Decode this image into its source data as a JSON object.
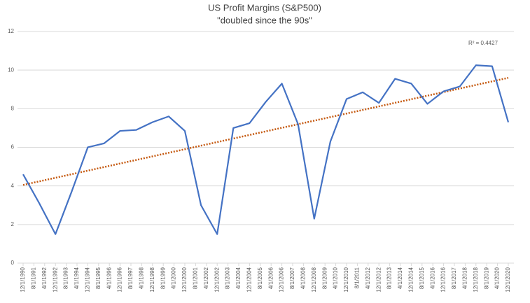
{
  "chart_data": {
    "type": "line",
    "title": "US Profit Margins (S&P500)",
    "subtitle": "\"doubled since the 90s\"",
    "annotation": "R² = 0.4427",
    "x": [
      1990,
      1991,
      1992,
      1993,
      1994,
      1995,
      1996,
      1997,
      1998,
      1999,
      2000,
      2001,
      2002,
      2003,
      2004,
      2005,
      2006,
      2007,
      2008,
      2009,
      2010,
      2011,
      2012,
      2013,
      2014,
      2015,
      2016,
      2017,
      2018,
      2019,
      2020
    ],
    "series": [
      {
        "color": "#4472c4",
        "values": [
          4.6,
          3.1,
          1.5,
          3.7,
          6.0,
          6.2,
          6.85,
          6.9,
          7.3,
          7.6,
          6.85,
          3.0,
          1.5,
          7.0,
          7.25,
          8.35,
          9.3,
          7.2,
          2.3,
          6.3,
          8.5,
          8.85,
          8.3,
          9.55,
          9.3,
          8.25,
          8.9,
          9.15,
          10.25,
          10.2,
          7.3
        ]
      }
    ],
    "trendline": {
      "color": "#c55a11",
      "x": [
        1990,
        2020
      ],
      "values": [
        4.05,
        9.6
      ]
    },
    "xlim": [
      1990,
      2020
    ],
    "xticks": [
      {
        "value": 1990,
        "label": "12/1/1990"
      },
      {
        "value": 1990.667,
        "label": "8/1/1991"
      },
      {
        "value": 1991.333,
        "label": "4/1/1992"
      },
      {
        "value": 1992,
        "label": "12/1/1992"
      },
      {
        "value": 1992.667,
        "label": "8/1/1993"
      },
      {
        "value": 1993.333,
        "label": "4/1/1994"
      },
      {
        "value": 1994,
        "label": "12/1/1994"
      },
      {
        "value": 1994.667,
        "label": "8/1/1995"
      },
      {
        "value": 1995.333,
        "label": "4/1/1996"
      },
      {
        "value": 1996,
        "label": "12/1/1996"
      },
      {
        "value": 1996.667,
        "label": "8/1/1997"
      },
      {
        "value": 1997.333,
        "label": "4/1/1998"
      },
      {
        "value": 1998,
        "label": "12/1/1998"
      },
      {
        "value": 1998.667,
        "label": "8/1/1999"
      },
      {
        "value": 1999.333,
        "label": "4/1/2000"
      },
      {
        "value": 2000,
        "label": "12/1/2000"
      },
      {
        "value": 2000.667,
        "label": "8/1/2001"
      },
      {
        "value": 2001.333,
        "label": "4/1/2002"
      },
      {
        "value": 2002,
        "label": "12/1/2002"
      },
      {
        "value": 2002.667,
        "label": "8/1/2003"
      },
      {
        "value": 2003.333,
        "label": "4/1/2004"
      },
      {
        "value": 2004,
        "label": "12/1/2004"
      },
      {
        "value": 2004.667,
        "label": "8/1/2005"
      },
      {
        "value": 2005.333,
        "label": "4/1/2006"
      },
      {
        "value": 2006,
        "label": "12/1/2006"
      },
      {
        "value": 2006.667,
        "label": "8/1/2007"
      },
      {
        "value": 2007.333,
        "label": "4/1/2008"
      },
      {
        "value": 2008,
        "label": "12/1/2008"
      },
      {
        "value": 2008.667,
        "label": "8/1/2009"
      },
      {
        "value": 2009.333,
        "label": "4/1/2010"
      },
      {
        "value": 2010,
        "label": "12/1/2010"
      },
      {
        "value": 2010.667,
        "label": "8/1/2011"
      },
      {
        "value": 2011.333,
        "label": "4/1/2012"
      },
      {
        "value": 2012,
        "label": "12/1/2012"
      },
      {
        "value": 2012.667,
        "label": "8/1/2013"
      },
      {
        "value": 2013.333,
        "label": "4/1/2014"
      },
      {
        "value": 2014,
        "label": "12/1/2014"
      },
      {
        "value": 2014.667,
        "label": "8/1/2015"
      },
      {
        "value": 2015.333,
        "label": "4/1/2016"
      },
      {
        "value": 2016,
        "label": "12/1/2016"
      },
      {
        "value": 2016.667,
        "label": "8/1/2017"
      },
      {
        "value": 2017.333,
        "label": "4/1/2018"
      },
      {
        "value": 2018,
        "label": "12/1/2018"
      },
      {
        "value": 2018.667,
        "label": "8/1/2019"
      },
      {
        "value": 2019.333,
        "label": "4/1/2020"
      },
      {
        "value": 2020,
        "label": "12/1/2020"
      }
    ],
    "ylim": [
      0,
      12
    ],
    "yticks": [
      0,
      2,
      4,
      6,
      8,
      10,
      12
    ],
    "grid": true
  }
}
